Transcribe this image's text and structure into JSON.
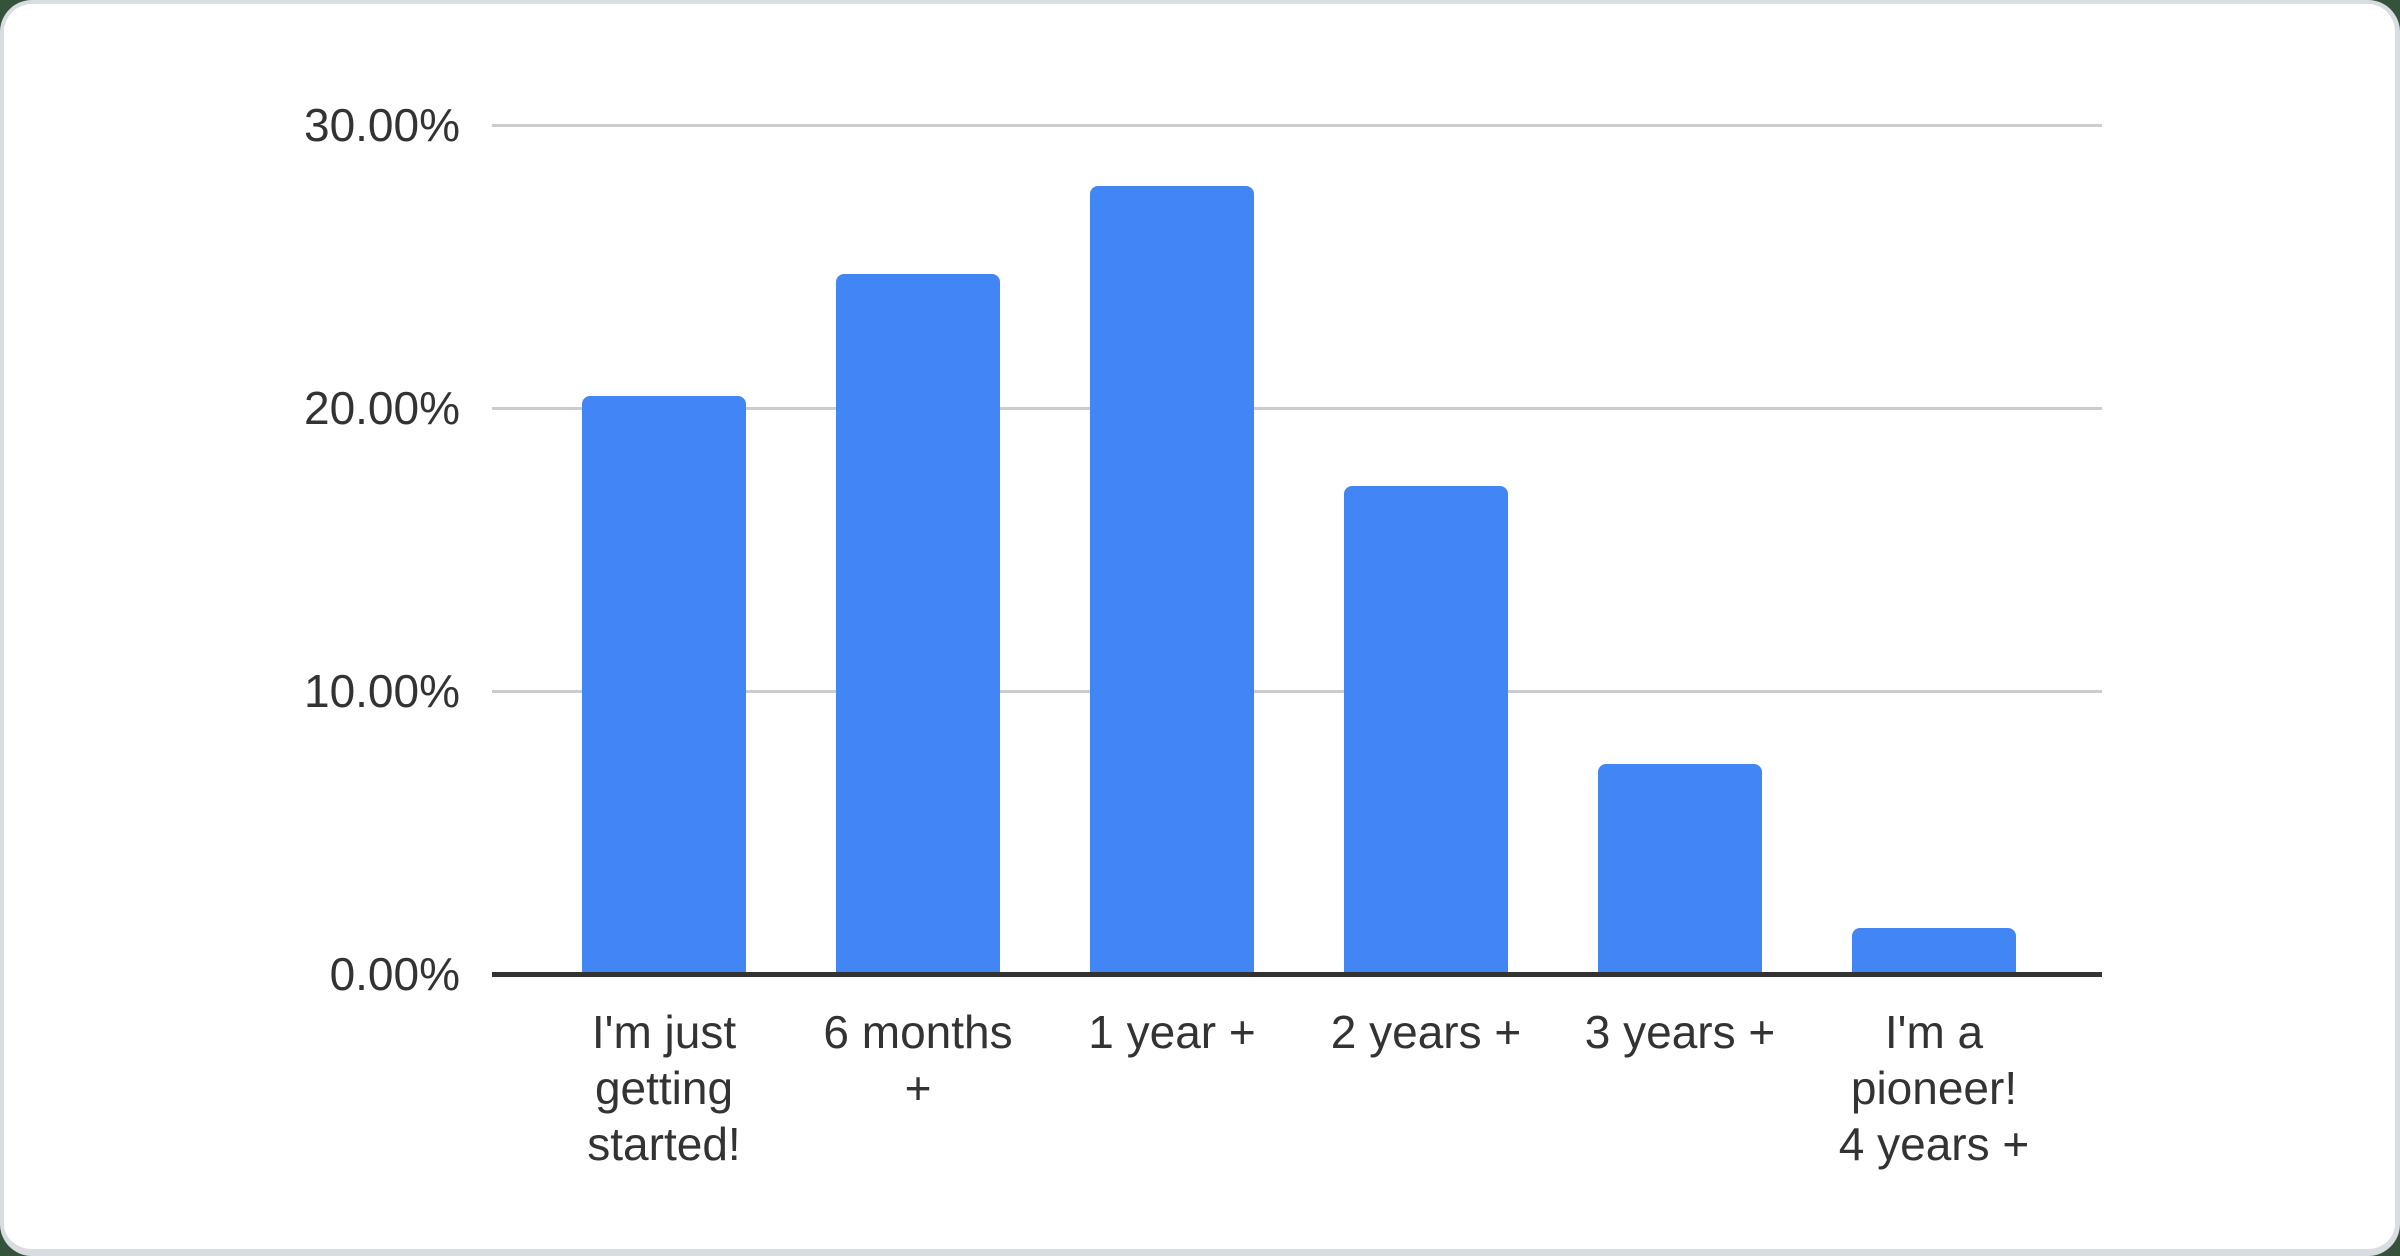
{
  "page": {
    "background_color": "#35523b",
    "card_background": "#ffffff",
    "card_border_color": "#d9dde1"
  },
  "chart_data": {
    "type": "bar",
    "title": "",
    "xlabel": "",
    "ylabel": "",
    "categories": [
      "I'm just getting started!",
      "6 months +",
      "1 year +",
      "2 years +",
      "3 years +",
      "I'm a pioneer! 4 years +"
    ],
    "category_lines": [
      [
        "I'm just",
        "getting",
        "started!"
      ],
      [
        "6 months",
        "+"
      ],
      [
        "1 year +"
      ],
      [
        "2 years +"
      ],
      [
        "3 years +"
      ],
      [
        "I'm a",
        "pioneer!",
        "4 years +"
      ]
    ],
    "values": [
      20.5,
      24.8,
      27.9,
      17.3,
      7.5,
      1.7
    ],
    "value_unit": "%",
    "ylim": [
      0,
      30
    ],
    "yticks": [
      0,
      10,
      20,
      30
    ],
    "ytick_labels": [
      "0.00%",
      "10.00%",
      "20.00%",
      "30.00%"
    ],
    "grid": "horizontal",
    "legend": "none",
    "bar_color": "#4285f4",
    "gridline_color": "#cccccc",
    "axis_line_color": "#333333",
    "text_color": "#333333"
  }
}
